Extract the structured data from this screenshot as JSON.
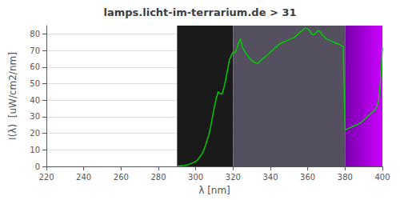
{
  "chart_data": {
    "type": "line",
    "title": "lamps.licht-im-terrarium.de > 31",
    "xlabel": "λ [nm]",
    "ylabel": "I(λ)  [uW/cm2/nm]",
    "xlim": [
      220,
      400
    ],
    "ylim": [
      0,
      85
    ],
    "xticks": [
      220,
      240,
      260,
      280,
      300,
      320,
      340,
      360,
      380,
      400
    ],
    "yticks": [
      0,
      10,
      20,
      30,
      40,
      50,
      60,
      70,
      80
    ],
    "grid": true,
    "color": "#00cc00",
    "regions": [
      {
        "start": 290,
        "end": 320,
        "colors": [
          "#1a1a1a"
        ]
      },
      {
        "start": 320,
        "end": 380,
        "colors": [
          "#555060"
        ]
      },
      {
        "start": 380,
        "end": 400,
        "colors": [
          "#7700aa",
          "#cc00ff"
        ]
      }
    ],
    "x": [
      290,
      291,
      292,
      293,
      294,
      295,
      296,
      297,
      298,
      299,
      300,
      301,
      302,
      303,
      304,
      305,
      306,
      307,
      308,
      309,
      310,
      311,
      312,
      313,
      314,
      315,
      316,
      317,
      318,
      319,
      320,
      321,
      322,
      323,
      324,
      325,
      326,
      327,
      328,
      329,
      330,
      331,
      332,
      333,
      334,
      335,
      336,
      337,
      338,
      339,
      340,
      341,
      342,
      343,
      344,
      345,
      346,
      347,
      348,
      349,
      350,
      351,
      352,
      353,
      354,
      355,
      356,
      357,
      358,
      359,
      360,
      361,
      362,
      363,
      364,
      365,
      366,
      367,
      368,
      369,
      370,
      371,
      372,
      373,
      374,
      375,
      376,
      377,
      378,
      379,
      380,
      381,
      382,
      383,
      384,
      385,
      386,
      387,
      388,
      389,
      390,
      391,
      392,
      393,
      394,
      395,
      396,
      397,
      398,
      399,
      400
    ],
    "values": [
      0.2,
      0.3,
      0.4,
      0.5,
      0.6,
      0.8,
      1.0,
      1.5,
      2.0,
      2.5,
      3.0,
      4.0,
      5.5,
      7.0,
      9.0,
      12.0,
      15.5,
      19.0,
      24.0,
      30.0,
      36.0,
      41.0,
      45.0,
      44.0,
      43.5,
      47.0,
      52.0,
      58.0,
      64.0,
      67.0,
      69.0,
      68.5,
      71.0,
      75.0,
      77.0,
      72.0,
      70.0,
      68.0,
      66.5,
      65.0,
      64.0,
      63.0,
      62.5,
      62.0,
      63.0,
      64.0,
      65.0,
      66.0,
      67.0,
      68.0,
      69.0,
      70.0,
      71.0,
      72.0,
      73.0,
      74.0,
      74.5,
      75.0,
      75.5,
      76.0,
      76.5,
      77.0,
      77.5,
      78.0,
      79.0,
      80.0,
      81.0,
      82.0,
      83.0,
      83.5,
      83.0,
      82.0,
      80.0,
      79.5,
      80.0,
      81.5,
      82.0,
      80.5,
      79.0,
      78.0,
      77.0,
      76.5,
      76.0,
      75.5,
      75.0,
      74.5,
      74.0,
      73.5,
      73.0,
      72.5,
      22.0,
      22.5,
      23.0,
      23.5,
      24.0,
      24.5,
      25.0,
      25.5,
      26.0,
      27.0,
      28.0,
      29.0,
      30.0,
      31.0,
      32.0,
      33.0,
      34.0,
      36.0,
      40.0,
      52.0,
      72.0
    ]
  }
}
